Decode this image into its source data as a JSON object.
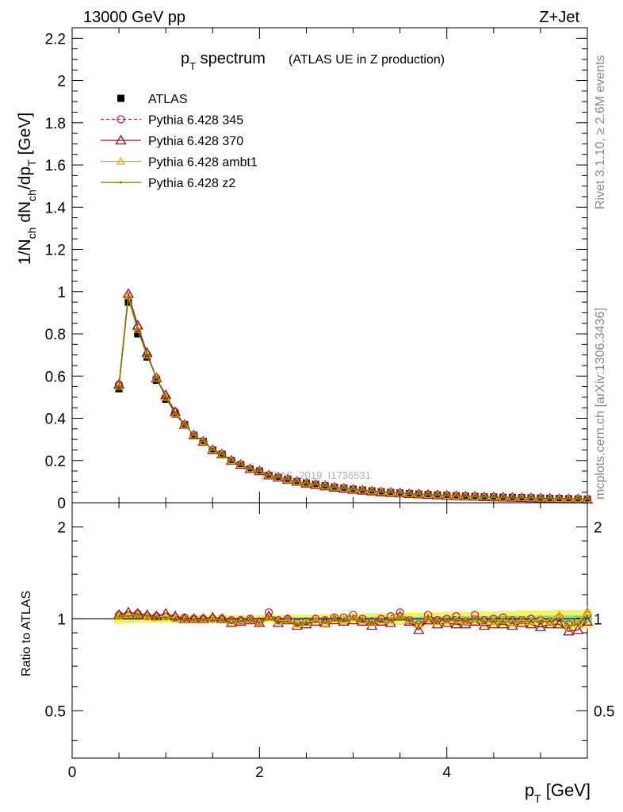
{
  "header": {
    "energy_label": "13000 GeV pp",
    "process_label": "Z+Jet",
    "side_label_rivet": "Rivet 3.1.10, ≥ 2.6M events",
    "side_label_mcplots": "mcplots.cern.ch [arXiv:1306.3436]"
  },
  "chart_data": [
    {
      "type": "line",
      "title": "p_T spectrum",
      "title_main": "p",
      "title_sub": "T",
      "title_rest": " spectrum",
      "subtitle": "(ATLAS UE in Z production)",
      "ylabel": "1/N_ch dN_ch/dp_T [GeV]",
      "ylabel_parts": {
        "a": "1/N",
        "a_sub": "ch",
        "b": " dN",
        "b_sub": "ch",
        "c": "/dp",
        "c_sub": "T",
        "d": " [GeV]"
      },
      "watermark": "ATLAS_2019_I1736531",
      "xlim": [
        0,
        5.5
      ],
      "ylim": [
        0,
        2.25
      ],
      "yticks": [
        "0",
        "0.2",
        "0.4",
        "0.6",
        "0.8",
        "1",
        "1.2",
        "1.4",
        "1.6",
        "1.8",
        "2",
        "2.2"
      ],
      "legend_position": "top-left",
      "x": [
        0.5,
        0.6,
        0.7,
        0.8,
        0.9,
        1.0,
        1.1,
        1.2,
        1.3,
        1.4,
        1.5,
        1.6,
        1.7,
        1.8,
        1.9,
        2.0,
        2.1,
        2.2,
        2.3,
        2.4,
        2.5,
        2.6,
        2.7,
        2.8,
        2.9,
        3.0,
        3.1,
        3.2,
        3.3,
        3.4,
        3.5,
        3.6,
        3.7,
        3.8,
        3.9,
        4.0,
        4.1,
        4.2,
        4.3,
        4.4,
        4.5,
        4.6,
        4.7,
        4.8,
        4.9,
        5.0,
        5.1,
        5.2,
        5.3,
        5.4,
        5.5
      ],
      "series": [
        {
          "name": "ATLAS",
          "color": "#000000",
          "marker": "square",
          "values": [
            0.54,
            0.95,
            0.8,
            0.69,
            0.58,
            0.49,
            0.42,
            0.37,
            0.32,
            0.29,
            0.25,
            0.23,
            0.2,
            0.18,
            0.16,
            0.15,
            0.13,
            0.12,
            0.11,
            0.1,
            0.093,
            0.087,
            0.08,
            0.074,
            0.069,
            0.064,
            0.06,
            0.056,
            0.052,
            0.049,
            0.046,
            0.043,
            0.041,
            0.039,
            0.037,
            0.035,
            0.033,
            0.031,
            0.03,
            0.028,
            0.027,
            0.026,
            0.025,
            0.024,
            0.023,
            0.022,
            0.021,
            0.02,
            0.019,
            0.018,
            0.017
          ]
        },
        {
          "name": "Pythia 6.428 345",
          "color": "#b4283c",
          "marker": "circle",
          "dash": "4,3",
          "values": [
            0.56,
            0.98,
            0.83,
            0.7,
            0.59,
            0.5,
            0.43,
            0.37,
            0.32,
            0.29,
            0.25,
            0.23,
            0.2,
            0.18,
            0.16,
            0.15,
            0.13,
            0.12,
            0.11,
            0.1,
            0.092,
            0.086,
            0.079,
            0.073,
            0.068,
            0.063,
            0.059,
            0.055,
            0.051,
            0.048,
            0.046,
            0.043,
            0.041,
            0.039,
            0.037,
            0.035,
            0.033,
            0.031,
            0.029,
            0.028,
            0.027,
            0.025,
            0.024,
            0.023,
            0.022,
            0.021,
            0.02,
            0.019,
            0.018,
            0.018,
            0.017
          ]
        },
        {
          "name": "Pythia 6.428 370",
          "color": "#8c1428",
          "marker": "triangle",
          "values": [
            0.56,
            0.99,
            0.84,
            0.71,
            0.59,
            0.51,
            0.43,
            0.37,
            0.32,
            0.29,
            0.25,
            0.23,
            0.2,
            0.18,
            0.16,
            0.15,
            0.13,
            0.12,
            0.11,
            0.1,
            0.091,
            0.085,
            0.078,
            0.072,
            0.067,
            0.062,
            0.058,
            0.054,
            0.05,
            0.047,
            0.045,
            0.042,
            0.04,
            0.038,
            0.036,
            0.034,
            0.032,
            0.03,
            0.029,
            0.027,
            0.026,
            0.025,
            0.024,
            0.023,
            0.022,
            0.021,
            0.02,
            0.018,
            0.017,
            0.017,
            0.016
          ]
        },
        {
          "name": "Pythia 6.428 ambt1",
          "color": "#f0a800",
          "marker": "triangle-small",
          "values": [
            0.55,
            0.98,
            0.82,
            0.7,
            0.59,
            0.5,
            0.42,
            0.37,
            0.32,
            0.29,
            0.25,
            0.23,
            0.2,
            0.18,
            0.16,
            0.15,
            0.13,
            0.12,
            0.11,
            0.1,
            0.092,
            0.086,
            0.079,
            0.073,
            0.068,
            0.063,
            0.059,
            0.055,
            0.051,
            0.048,
            0.045,
            0.042,
            0.04,
            0.038,
            0.036,
            0.034,
            0.032,
            0.03,
            0.029,
            0.028,
            0.026,
            0.025,
            0.024,
            0.023,
            0.022,
            0.021,
            0.02,
            0.019,
            0.018,
            0.018,
            0.017
          ]
        },
        {
          "name": "Pythia 6.428 z2",
          "color": "#6b7a00",
          "marker": "dot",
          "values": [
            0.55,
            0.97,
            0.82,
            0.7,
            0.59,
            0.5,
            0.42,
            0.37,
            0.32,
            0.29,
            0.25,
            0.23,
            0.2,
            0.18,
            0.16,
            0.15,
            0.13,
            0.12,
            0.11,
            0.1,
            0.092,
            0.086,
            0.079,
            0.073,
            0.068,
            0.063,
            0.059,
            0.055,
            0.051,
            0.048,
            0.045,
            0.042,
            0.04,
            0.038,
            0.036,
            0.034,
            0.032,
            0.03,
            0.029,
            0.028,
            0.026,
            0.025,
            0.024,
            0.023,
            0.022,
            0.021,
            0.02,
            0.019,
            0.018,
            0.018,
            0.017
          ]
        }
      ]
    },
    {
      "type": "line",
      "ylabel": "Ratio to ATLAS",
      "xlabel": "p_T [GeV]",
      "xlabel_main": "p",
      "xlabel_sub": "T",
      "xlabel_rest": " [GeV]",
      "xlim": [
        0,
        5.5
      ],
      "ylim": [
        0.35,
        2.4
      ],
      "yticks": [
        "0.5",
        "1",
        "2"
      ],
      "xticks": [
        "0",
        "2",
        "4"
      ],
      "reference_line": 1,
      "band_inner": {
        "color": "#7de27d",
        "half_width": [
          0.01,
          0.01,
          0.01,
          0.01,
          0.01,
          0.01,
          0.01,
          0.01,
          0.01,
          0.01,
          0.01,
          0.01,
          0.01,
          0.01,
          0.01,
          0.01,
          0.01,
          0.012,
          0.012,
          0.012,
          0.012,
          0.012,
          0.013,
          0.013,
          0.013,
          0.014,
          0.014,
          0.015,
          0.015,
          0.016,
          0.016,
          0.017,
          0.017,
          0.018,
          0.018,
          0.019,
          0.019,
          0.02,
          0.02,
          0.021,
          0.021,
          0.022,
          0.022,
          0.023,
          0.023,
          0.024,
          0.024,
          0.025,
          0.025,
          0.026,
          0.026
        ]
      },
      "band_outer": {
        "color": "#f5f070",
        "half_width": [
          0.04,
          0.035,
          0.03,
          0.03,
          0.03,
          0.03,
          0.03,
          0.03,
          0.03,
          0.03,
          0.03,
          0.03,
          0.03,
          0.03,
          0.03,
          0.03,
          0.03,
          0.035,
          0.035,
          0.035,
          0.035,
          0.035,
          0.04,
          0.04,
          0.04,
          0.04,
          0.04,
          0.045,
          0.045,
          0.045,
          0.045,
          0.05,
          0.05,
          0.05,
          0.05,
          0.055,
          0.055,
          0.055,
          0.055,
          0.06,
          0.06,
          0.06,
          0.06,
          0.065,
          0.065,
          0.065,
          0.065,
          0.07,
          0.07,
          0.07,
          0.07
        ]
      },
      "x": [
        0.5,
        0.6,
        0.7,
        0.8,
        0.9,
        1.0,
        1.1,
        1.2,
        1.3,
        1.4,
        1.5,
        1.6,
        1.7,
        1.8,
        1.9,
        2.0,
        2.1,
        2.2,
        2.3,
        2.4,
        2.5,
        2.6,
        2.7,
        2.8,
        2.9,
        3.0,
        3.1,
        3.2,
        3.3,
        3.4,
        3.5,
        3.6,
        3.7,
        3.8,
        3.9,
        4.0,
        4.1,
        4.2,
        4.3,
        4.4,
        4.5,
        4.6,
        4.7,
        4.8,
        4.9,
        5.0,
        5.1,
        5.2,
        5.3,
        5.4,
        5.5
      ],
      "series": [
        {
          "name": "Pythia 6.428 345",
          "color": "#b4283c",
          "marker": "circle",
          "dash": "4,3",
          "values": [
            1.03,
            1.03,
            1.04,
            1.02,
            1.02,
            1.02,
            1.01,
            1.01,
            1.0,
            1.0,
            1.0,
            1.0,
            0.99,
            0.99,
            1.0,
            0.98,
            1.05,
            0.99,
            1.0,
            0.97,
            0.98,
            1.0,
            0.99,
            1.01,
            1.01,
            1.03,
            1.0,
            0.98,
            1.0,
            1.02,
            1.05,
            0.99,
            0.96,
            1.03,
            0.99,
            1.0,
            1.02,
            0.98,
            1.03,
            0.99,
            1.0,
            1.01,
            0.99,
            0.99,
            1.0,
            0.99,
            0.98,
            1.01,
            0.96,
            0.98,
            1.03
          ]
        },
        {
          "name": "Pythia 6.428 370",
          "color": "#8c1428",
          "marker": "triangle",
          "values": [
            1.03,
            1.05,
            1.04,
            1.03,
            1.02,
            1.04,
            1.02,
            1.0,
            1.0,
            1.0,
            1.01,
            1.0,
            0.97,
            0.98,
            0.99,
            0.97,
            1.02,
            0.97,
            0.99,
            0.95,
            0.96,
            0.98,
            0.97,
            0.99,
            0.98,
            0.99,
            0.98,
            0.95,
            0.98,
            0.97,
            1.02,
            0.98,
            0.92,
            0.99,
            0.96,
            0.97,
            0.96,
            0.96,
            0.98,
            0.95,
            0.96,
            0.96,
            0.95,
            0.97,
            0.96,
            0.94,
            0.96,
            0.96,
            0.91,
            0.92,
            0.98
          ]
        },
        {
          "name": "Pythia 6.428 ambt1",
          "color": "#f0a800",
          "marker": "triangle-small",
          "values": [
            1.02,
            1.03,
            1.03,
            1.02,
            1.01,
            1.02,
            1.0,
            0.99,
            0.99,
            0.99,
            1.0,
            0.99,
            0.97,
            0.98,
            0.99,
            0.97,
            1.01,
            0.98,
            0.99,
            0.96,
            0.97,
            0.99,
            0.96,
            0.99,
            0.99,
            1.01,
            0.99,
            0.97,
            0.99,
            0.99,
            1.02,
            0.99,
            0.96,
            1.01,
            0.98,
            0.99,
            0.99,
            0.98,
            1.0,
            0.98,
            0.98,
            0.99,
            0.97,
            0.99,
            0.98,
            1.0,
            0.98,
            1.03,
            0.94,
            0.96,
            1.06
          ]
        },
        {
          "name": "Pythia 6.428 z2",
          "color": "#6b7a00",
          "marker": "dot",
          "values": [
            1.02,
            1.02,
            1.03,
            1.02,
            1.01,
            1.01,
            1.0,
            0.99,
            0.99,
            0.99,
            0.99,
            0.99,
            0.97,
            0.98,
            0.99,
            0.97,
            1.0,
            0.98,
            0.98,
            0.96,
            0.97,
            0.98,
            0.97,
            0.99,
            0.99,
            1.0,
            0.99,
            0.97,
            0.99,
            0.99,
            1.01,
            0.99,
            0.96,
            1.0,
            0.98,
            0.99,
            0.99,
            0.98,
            1.0,
            0.98,
            0.98,
            0.98,
            0.97,
            0.98,
            0.98,
            0.98,
            0.98,
            1.0,
            0.95,
            0.96,
            1.02
          ]
        }
      ]
    }
  ]
}
